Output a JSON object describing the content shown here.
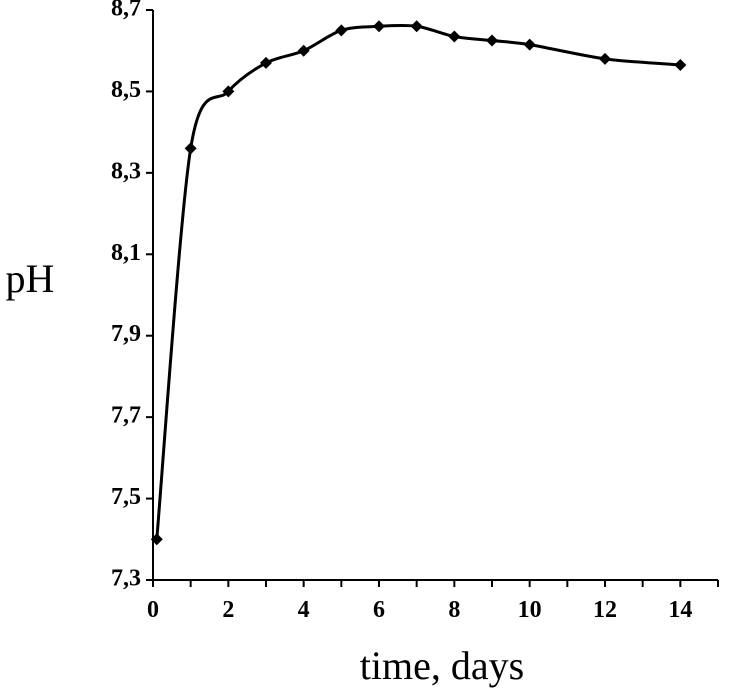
{
  "chart_data": {
    "type": "line",
    "title": "",
    "xlabel": "time, days",
    "ylabel": "pH",
    "xlim": [
      0,
      15
    ],
    "ylim": [
      7.3,
      8.7
    ],
    "x_ticks": [
      0,
      2,
      4,
      6,
      8,
      10,
      12,
      14
    ],
    "x_tick_labels": [
      "0",
      "2",
      "4",
      "6",
      "8",
      "10",
      "12",
      "14"
    ],
    "y_ticks": [
      7.3,
      7.5,
      7.7,
      7.9,
      8.1,
      8.3,
      8.5,
      8.7
    ],
    "y_tick_labels": [
      "7,3",
      "7,5",
      "7,7",
      "7,9",
      "8,1",
      "8,3",
      "8,5",
      "8,7"
    ],
    "grid": false,
    "legend": "none",
    "marker": "diamond",
    "color": "#000000",
    "series": [
      {
        "x": [
          0.1,
          1,
          2,
          3,
          4,
          5,
          6,
          7,
          8,
          9,
          10,
          12,
          14
        ],
        "y": [
          7.4,
          8.36,
          8.5,
          8.57,
          8.6,
          8.65,
          8.66,
          8.66,
          8.635,
          8.625,
          8.615,
          8.58,
          8.565
        ]
      }
    ]
  }
}
